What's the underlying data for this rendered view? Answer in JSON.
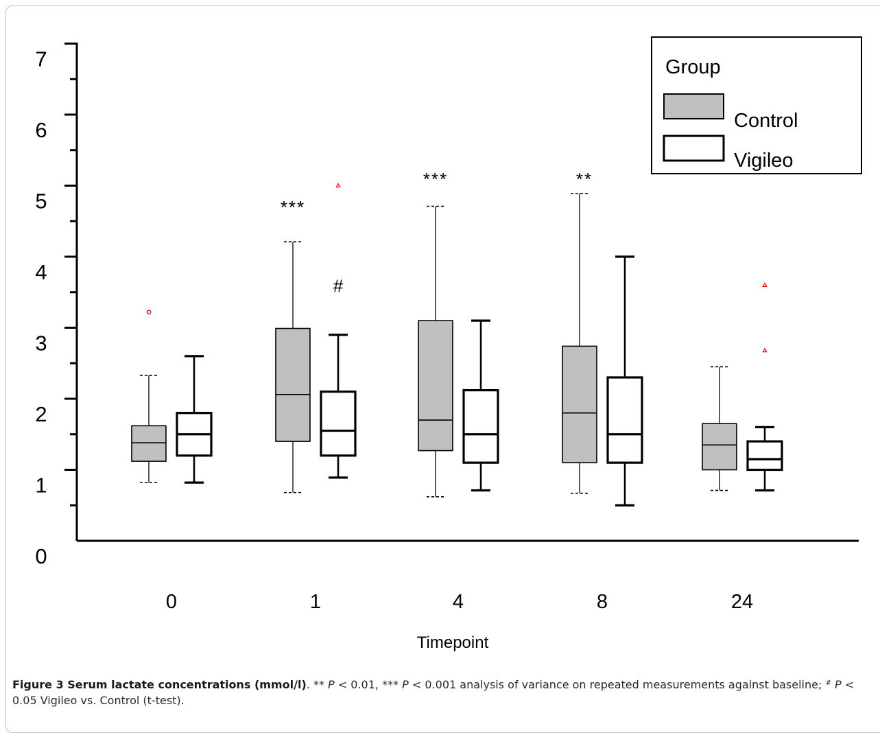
{
  "chart_data": {
    "type": "box",
    "xlabel": "Timepoint",
    "categories": [
      "0",
      "1",
      "4",
      "8",
      "24"
    ],
    "ytick_labels": [
      "0",
      "1",
      "2",
      "3",
      "4",
      "5",
      "6",
      "7"
    ],
    "ylim": [
      0,
      7
    ],
    "legend": {
      "title": "Group",
      "position": "top-right"
    },
    "series": [
      {
        "name": "Control",
        "color": "#c0c0c0",
        "boxes": [
          {
            "category": "0",
            "whisker_low": 0.82,
            "q1": 1.12,
            "median": 1.38,
            "q3": 1.62,
            "whisker_high": 2.33,
            "outliers": [
              3.22
            ]
          },
          {
            "category": "1",
            "whisker_low": 0.68,
            "q1": 1.4,
            "median": 2.06,
            "q3": 2.99,
            "whisker_high": 4.21,
            "outliers": []
          },
          {
            "category": "4",
            "whisker_low": 0.62,
            "q1": 1.27,
            "median": 1.7,
            "q3": 3.1,
            "whisker_high": 4.71,
            "outliers": []
          },
          {
            "category": "8",
            "whisker_low": 0.67,
            "q1": 1.1,
            "median": 1.8,
            "q3": 2.74,
            "whisker_high": 4.89,
            "outliers": []
          },
          {
            "category": "24",
            "whisker_low": 0.71,
            "q1": 1.0,
            "median": 1.35,
            "q3": 1.65,
            "whisker_high": 2.45,
            "outliers": []
          }
        ]
      },
      {
        "name": "Vigileo",
        "color": "#ffffff",
        "boxes": [
          {
            "category": "0",
            "whisker_low": 0.82,
            "q1": 1.2,
            "median": 1.5,
            "q3": 1.8,
            "whisker_high": 2.6,
            "outliers": []
          },
          {
            "category": "1",
            "whisker_low": 0.89,
            "q1": 1.2,
            "median": 1.55,
            "q3": 2.1,
            "whisker_high": 2.9,
            "outliers": [
              5.0
            ]
          },
          {
            "category": "4",
            "whisker_low": 0.71,
            "q1": 1.1,
            "median": 1.5,
            "q3": 2.12,
            "whisker_high": 3.1,
            "outliers": []
          },
          {
            "category": "8",
            "whisker_low": 0.5,
            "q1": 1.1,
            "median": 1.5,
            "q3": 2.3,
            "whisker_high": 4.0,
            "outliers": []
          },
          {
            "category": "24",
            "whisker_low": 0.71,
            "q1": 1.0,
            "median": 1.15,
            "q3": 1.4,
            "whisker_high": 1.6,
            "outliers": [
              3.6,
              2.68
            ]
          }
        ]
      }
    ],
    "annotations": [
      {
        "text": "***",
        "category": "1",
        "series": "Control",
        "y": 4.8
      },
      {
        "text": "#",
        "category": "1",
        "series": "Vigileo",
        "y": 3.55
      },
      {
        "text": "***",
        "category": "4",
        "series": "Control",
        "y": 5.2
      },
      {
        "text": "**",
        "category": "8",
        "series": "Control",
        "y": 5.2
      }
    ]
  },
  "caption": {
    "label": "Figure 3 Serum lactate concentrations (mmol/l)",
    "p1_pre": ". ** ",
    "p1_sym": "P",
    "p1_post": " < 0.01, *** ",
    "p2_sym": "P",
    "p2_post": " < 0.001 analysis of variance on repeated measurements against baseline; ",
    "hash": "#",
    "p3_sym": "P",
    "p3_post": " < 0.05 Vigileo vs. Control (t-test)."
  }
}
